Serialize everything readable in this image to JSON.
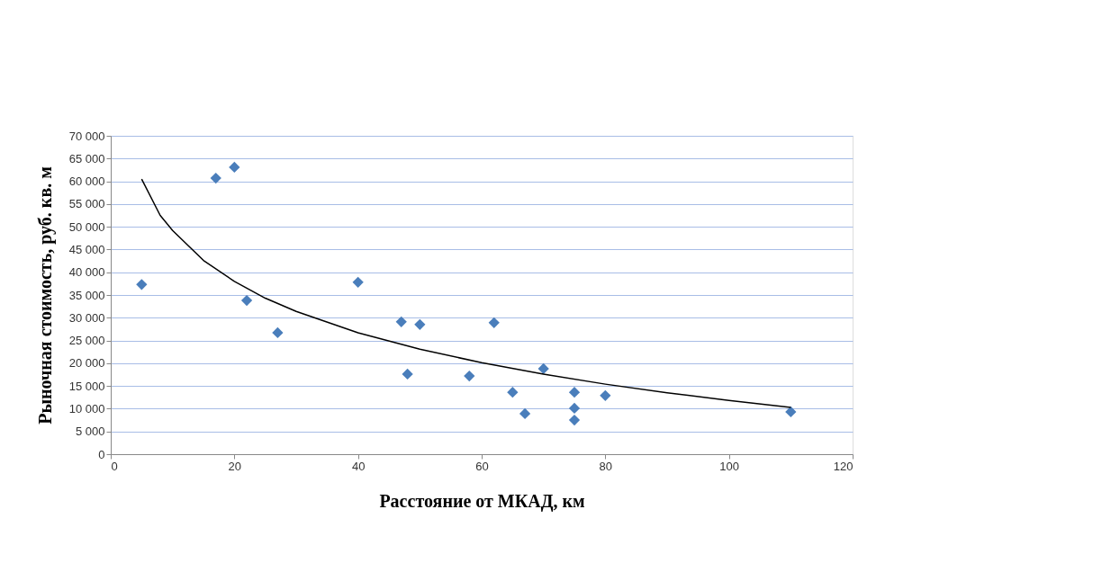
{
  "chart_data": {
    "type": "scatter",
    "xlabel": "Расстояние от МКАД, км",
    "ylabel": "Рыночная стоимость, руб. кв. м",
    "xlim": [
      0,
      120
    ],
    "xticks": [
      0,
      20,
      40,
      60,
      80,
      100,
      120
    ],
    "ylim": [
      0,
      70000
    ],
    "yticks": [
      {
        "value": 0,
        "label": "0"
      },
      {
        "value": 5000,
        "label": "5 000"
      },
      {
        "value": 10000,
        "label": "10 000"
      },
      {
        "value": 15000,
        "label": "15 000"
      },
      {
        "value": 20000,
        "label": "20 000"
      },
      {
        "value": 25000,
        "label": "25 000"
      },
      {
        "value": 30000,
        "label": "30 000"
      },
      {
        "value": 35000,
        "label": "35 000"
      },
      {
        "value": 40000,
        "label": "40 000"
      },
      {
        "value": 45000,
        "label": "45 000"
      },
      {
        "value": 50000,
        "label": "50 000"
      },
      {
        "value": 55000,
        "label": "55 000"
      },
      {
        "value": 60000,
        "label": "60 000"
      },
      {
        "value": 65000,
        "label": "65 000"
      },
      {
        "value": 70000,
        "label": "70 000"
      }
    ],
    "grid": "y",
    "marker": "diamond",
    "series": [
      {
        "color": "#4a7ebb",
        "x": [
          5,
          17,
          20,
          22,
          27,
          40,
          47,
          50,
          48,
          58,
          62,
          65,
          67,
          70,
          75,
          75,
          75,
          80,
          110
        ],
        "values": [
          37300,
          60700,
          63100,
          33800,
          26700,
          37800,
          29100,
          28500,
          17600,
          17200,
          28900,
          13600,
          8900,
          18800,
          13600,
          10100,
          7500,
          12900,
          9300
        ]
      },
      {
        "type": "line",
        "color": "#000000",
        "marker": "none",
        "line_style": "solid",
        "x": [
          5,
          8,
          10,
          15,
          20,
          25,
          30,
          40,
          50,
          60,
          70,
          80,
          90,
          100,
          110
        ],
        "values": [
          60500,
          52500,
          49200,
          42600,
          38000,
          34300,
          31400,
          26700,
          23100,
          20100,
          17600,
          15400,
          13500,
          11800,
          10300
        ]
      }
    ]
  }
}
